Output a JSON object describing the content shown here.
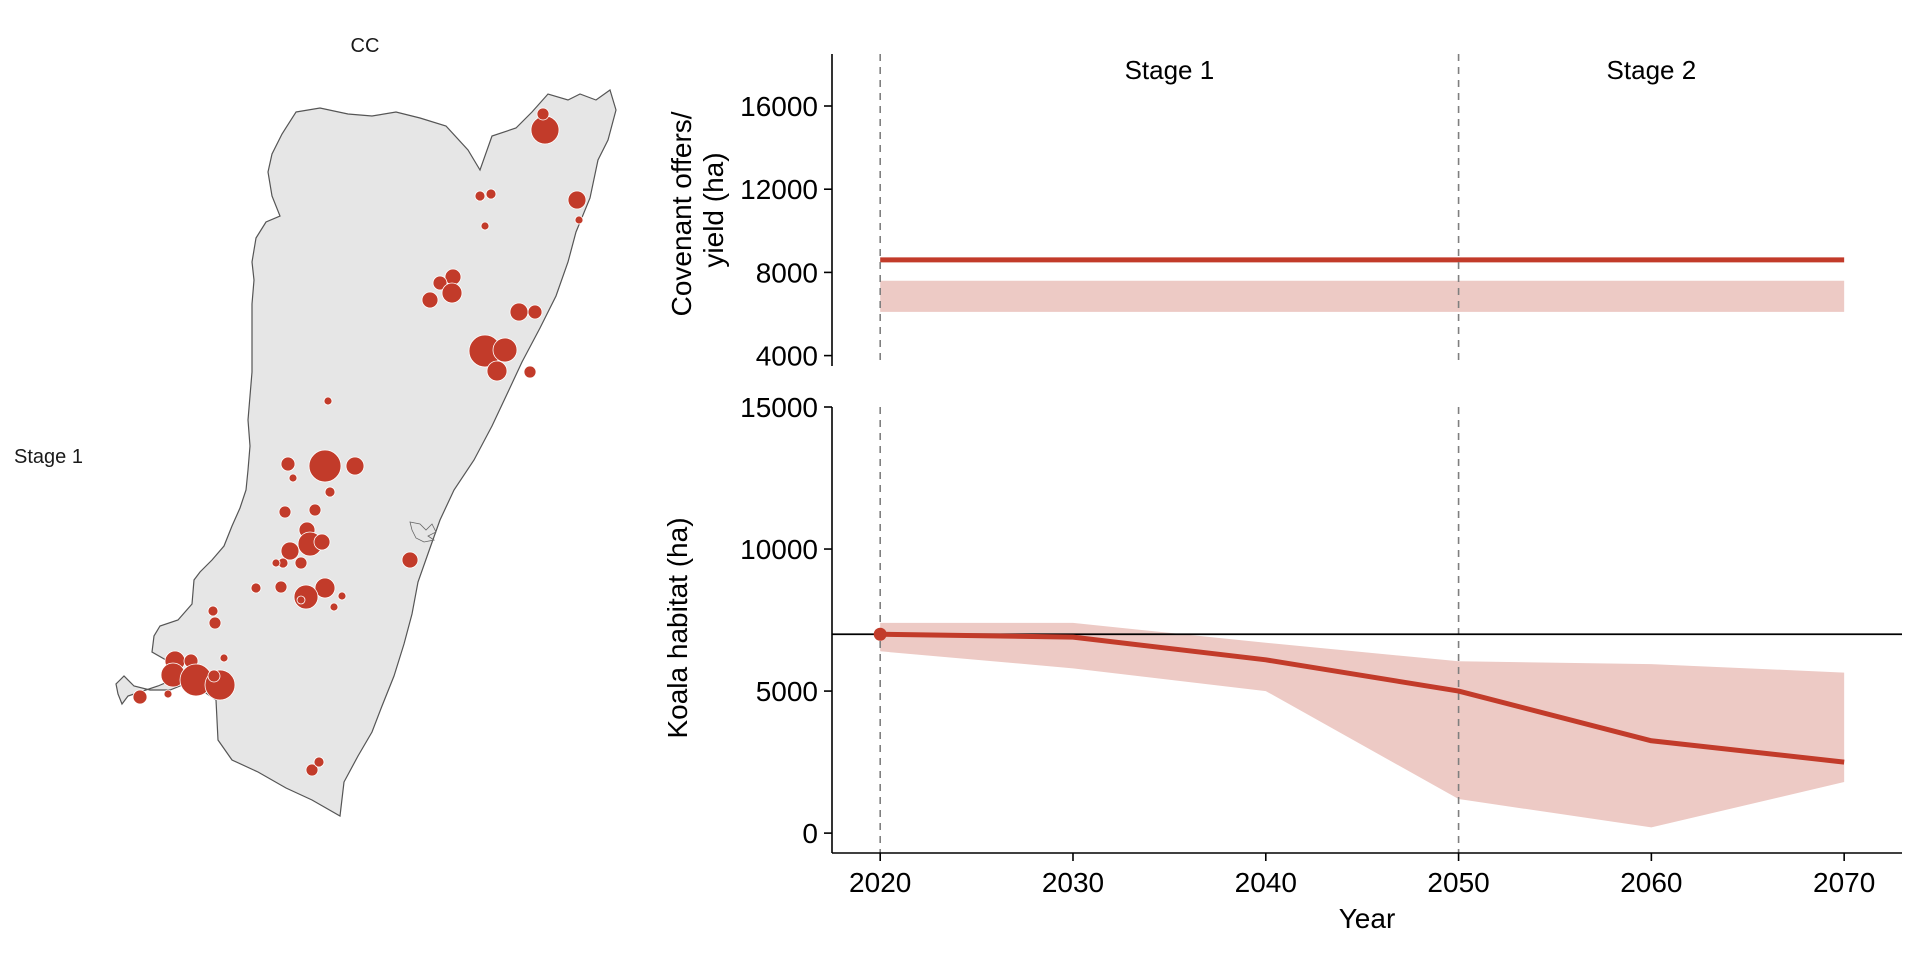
{
  "map_panel": {
    "title": "CC",
    "row_label": "Stage 1",
    "fill_color": "#e6e6e6",
    "point_color": "#c23b2a"
  },
  "chart_data": [
    {
      "type": "area",
      "title": "",
      "xlabel": "",
      "ylabel": "Covenant offers/\nyield (ha)",
      "ylabel_lines": [
        "Covenant offers/",
        "yield (ha)"
      ],
      "xlim": [
        2017.5,
        2073
      ],
      "ylim": [
        3500,
        18500
      ],
      "yticks": [
        4000,
        8000,
        12000,
        16000
      ],
      "grid": false,
      "stage_lines": [
        2020,
        2050
      ],
      "stage_labels": [
        {
          "label": "Stage 1",
          "x": 2035
        },
        {
          "label": "Stage 2",
          "x": 2060
        }
      ],
      "series": [
        {
          "name": "",
          "x": [
            2020,
            2070
          ],
          "values": [
            8600,
            8600
          ],
          "lower": [
            6100,
            6100
          ],
          "upper": [
            7600,
            7600
          ],
          "color": "#c23b2a",
          "band_color": "#edcac5"
        }
      ]
    },
    {
      "type": "line",
      "title": "",
      "xlabel": "Year",
      "ylabel": "Koala habitat (ha)",
      "xlim": [
        2017.5,
        2073
      ],
      "ylim": [
        -700,
        15000
      ],
      "xticks": [
        2020,
        2030,
        2040,
        2050,
        2060,
        2070
      ],
      "yticks": [
        0,
        5000,
        10000,
        15000
      ],
      "grid": false,
      "stage_lines": [
        2020,
        2050
      ],
      "reference_line": 7000,
      "series": [
        {
          "name": "",
          "x": [
            2020,
            2030,
            2040,
            2050,
            2060,
            2070
          ],
          "values": [
            7000,
            6900,
            6100,
            5000,
            3250,
            2500
          ],
          "lower": [
            6400,
            5800,
            5000,
            1200,
            200,
            1800
          ],
          "upper": [
            7400,
            7400,
            6700,
            6050,
            5950,
            5650
          ],
          "start_point": 7000,
          "color": "#c23b2a",
          "band_color": "#edcac5"
        }
      ]
    }
  ]
}
